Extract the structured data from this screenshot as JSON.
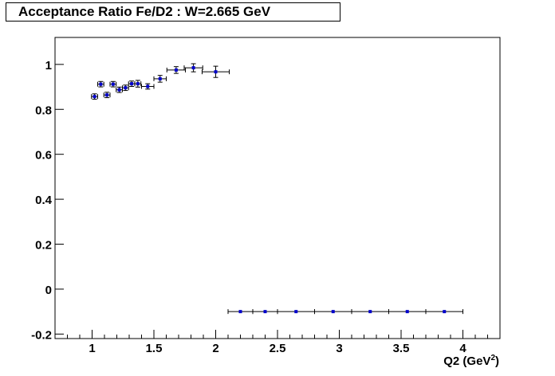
{
  "chart_data": {
    "type": "scatter",
    "title": "Acceptance Ratio Fe/D2 : W=2.665 GeV",
    "xlabel_main": "Q2 (GeV",
    "xlabel_sup": "2",
    "xlabel_close": ")",
    "ylabel": "",
    "xlim": [
      0.7,
      4.3
    ],
    "ylim": [
      -0.22,
      1.12
    ],
    "x_ticks": [
      {
        "v": 1,
        "label": "1"
      },
      {
        "v": 1.5,
        "label": "1.5"
      },
      {
        "v": 2,
        "label": "2"
      },
      {
        "v": 2.5,
        "label": "2.5"
      },
      {
        "v": 3,
        "label": "3"
      },
      {
        "v": 3.5,
        "label": "3.5"
      },
      {
        "v": 4,
        "label": "4"
      }
    ],
    "y_ticks": [
      {
        "v": -0.2,
        "label": "-0.2"
      },
      {
        "v": 0,
        "label": "0"
      },
      {
        "v": 0.2,
        "label": "0.2"
      },
      {
        "v": 0.4,
        "label": "0.4"
      },
      {
        "v": 0.6,
        "label": "0.6"
      },
      {
        "v": 0.8,
        "label": "0.8"
      },
      {
        "v": 1,
        "label": "1"
      }
    ],
    "marker_color": "#0000cc",
    "points": [
      {
        "x": 1.02,
        "y": 0.857,
        "xerr": 0.025,
        "yerr": 0.012
      },
      {
        "x": 1.07,
        "y": 0.912,
        "xerr": 0.025,
        "yerr": 0.012
      },
      {
        "x": 1.12,
        "y": 0.864,
        "xerr": 0.025,
        "yerr": 0.012
      },
      {
        "x": 1.17,
        "y": 0.912,
        "xerr": 0.025,
        "yerr": 0.012
      },
      {
        "x": 1.22,
        "y": 0.887,
        "xerr": 0.025,
        "yerr": 0.012
      },
      {
        "x": 1.27,
        "y": 0.896,
        "xerr": 0.025,
        "yerr": 0.012
      },
      {
        "x": 1.32,
        "y": 0.914,
        "xerr": 0.025,
        "yerr": 0.012
      },
      {
        "x": 1.37,
        "y": 0.914,
        "xerr": 0.025,
        "yerr": 0.015
      },
      {
        "x": 1.45,
        "y": 0.902,
        "xerr": 0.05,
        "yerr": 0.012
      },
      {
        "x": 1.55,
        "y": 0.936,
        "xerr": 0.05,
        "yerr": 0.015
      },
      {
        "x": 1.68,
        "y": 0.975,
        "xerr": 0.075,
        "yerr": 0.015
      },
      {
        "x": 1.82,
        "y": 0.985,
        "xerr": 0.075,
        "yerr": 0.018
      },
      {
        "x": 2.0,
        "y": 0.967,
        "xerr": 0.11,
        "yerr": 0.025
      },
      {
        "x": 2.2,
        "y": -0.1,
        "xerr": 0.1,
        "yerr": 0
      },
      {
        "x": 2.4,
        "y": -0.1,
        "xerr": 0.1,
        "yerr": 0
      },
      {
        "x": 2.65,
        "y": -0.1,
        "xerr": 0.15,
        "yerr": 0
      },
      {
        "x": 2.95,
        "y": -0.1,
        "xerr": 0.15,
        "yerr": 0
      },
      {
        "x": 3.25,
        "y": -0.1,
        "xerr": 0.15,
        "yerr": 0
      },
      {
        "x": 3.55,
        "y": -0.1,
        "xerr": 0.15,
        "yerr": 0
      },
      {
        "x": 3.85,
        "y": -0.1,
        "xerr": 0.15,
        "yerr": 0
      }
    ]
  }
}
